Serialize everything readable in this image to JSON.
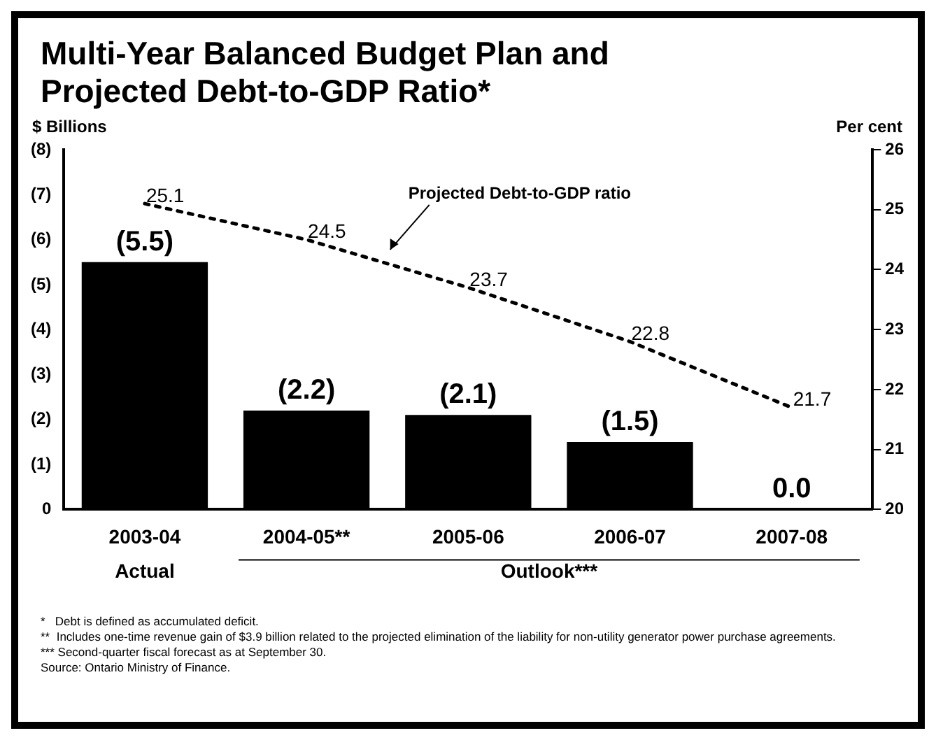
{
  "chart_data": {
    "type": "bar",
    "title": "Multi-Year Balanced Budget Plan and Projected Debt-to-GDP Ratio*",
    "ylabel": "$ Billions",
    "y2label": "Per cent",
    "categories": [
      "2003-04",
      "2004-05**",
      "2005-06",
      "2006-07",
      "2007-08"
    ],
    "series": [
      {
        "color": "#000000",
        "values": [
          5.5,
          2.2,
          2.1,
          1.5,
          0.0
        ],
        "value_labels": [
          "(5.5)",
          "(2.2)",
          "(2.1)",
          "(1.5)",
          "0.0"
        ]
      },
      {
        "type": "line",
        "axis": "y2",
        "color": "#000000",
        "line_style": "dotted",
        "marker": "none",
        "values": [
          25.1,
          24.5,
          23.7,
          22.8,
          21.7
        ],
        "value_labels": [
          "25.1",
          "24.5",
          "23.7",
          "22.8",
          "21.7"
        ]
      }
    ],
    "ylim": [
      0,
      8
    ],
    "yticks": [
      {
        "value": 0,
        "label": "0"
      },
      {
        "value": 1,
        "label": "(1)"
      },
      {
        "value": 2,
        "label": "(2)"
      },
      {
        "value": 3,
        "label": "(3)"
      },
      {
        "value": 4,
        "label": "(4)"
      },
      {
        "value": 5,
        "label": "(5)"
      },
      {
        "value": 6,
        "label": "(6)"
      },
      {
        "value": 7,
        "label": "(7)"
      },
      {
        "value": 8,
        "label": "(8)"
      }
    ],
    "y2lim": [
      20,
      26
    ],
    "y2ticks": [
      20,
      21,
      22,
      23,
      24,
      25,
      26
    ],
    "grid": false,
    "legend": false,
    "annotations": [
      "Projected Debt-to-GDP ratio",
      "Actual",
      "Outlook***",
      "*   Debt is defined as accumulated deficit.",
      "**  Includes one-time revenue gain of $3.9 billion related to the projected elimination of the liability for non-utility generator power purchase agreements.",
      "*** Second-quarter fiscal forecast as at September 30.",
      "Source: Ontario Ministry of Finance."
    ]
  }
}
